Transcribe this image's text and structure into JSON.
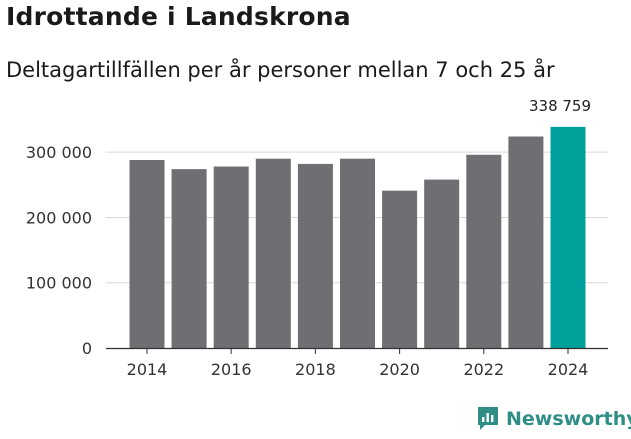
{
  "title": "Idrottande i Landskrona",
  "subtitle": "Deltagartillfällen per år personer mellan 7 och 25 år",
  "brand": {
    "name": "Newsworthy",
    "icon": "newsworthy-logo-icon",
    "color": "#2f8f86"
  },
  "chart_data": {
    "type": "bar",
    "title": "Idrottande i Landskrona",
    "subtitle": "Deltagartillfällen per år personer mellan 7 och 25 år",
    "xlabel": "",
    "ylabel": "",
    "categories": [
      2014,
      2015,
      2016,
      2017,
      2018,
      2019,
      2020,
      2021,
      2022,
      2023,
      2024
    ],
    "values": [
      288000,
      274000,
      278000,
      290000,
      282000,
      290000,
      241000,
      258000,
      296000,
      324000,
      338759
    ],
    "ylim": [
      0,
      360000
    ],
    "y_ticks": [
      0,
      100000,
      200000,
      300000
    ],
    "y_tick_labels": [
      "0",
      "100 000",
      "200 000",
      "300 000"
    ],
    "x_ticks": [
      2014,
      2016,
      2018,
      2020,
      2022,
      2024
    ],
    "x_tick_labels": [
      "2014",
      "2016",
      "2018",
      "2020",
      "2022",
      "2024"
    ],
    "highlight": {
      "category": 2024,
      "label": "338 759"
    },
    "colors": {
      "bar": "#6e6e73",
      "highlight": "#00a19a",
      "grid": "#d9d9d9",
      "axis": "#333333"
    },
    "grid": true
  }
}
